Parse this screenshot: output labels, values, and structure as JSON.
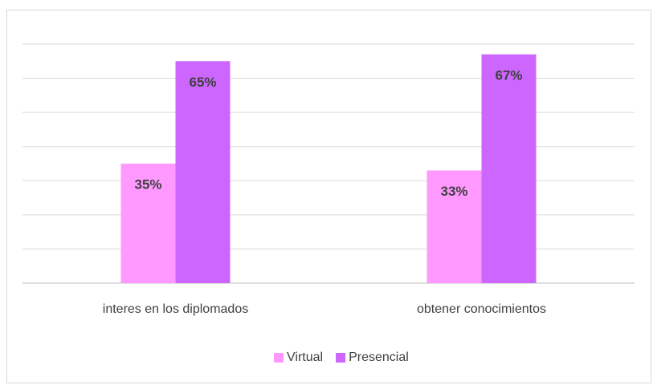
{
  "chart_data": {
    "type": "bar",
    "categories": [
      "interes en los diplomados",
      "obtener conocimientos"
    ],
    "series": [
      {
        "name": "Virtual",
        "color": "#ff99ff",
        "values": [
          35,
          33
        ],
        "value_labels": [
          "35%",
          "33%"
        ]
      },
      {
        "name": "Presencial",
        "color": "#cc66ff",
        "values": [
          65,
          67
        ],
        "value_labels": [
          "65%",
          "67%"
        ]
      }
    ],
    "ylim": [
      0,
      70
    ],
    "yticks": [
      0,
      10,
      20,
      30,
      40,
      50,
      60,
      70
    ],
    "grid": true,
    "legend": "bottom"
  }
}
